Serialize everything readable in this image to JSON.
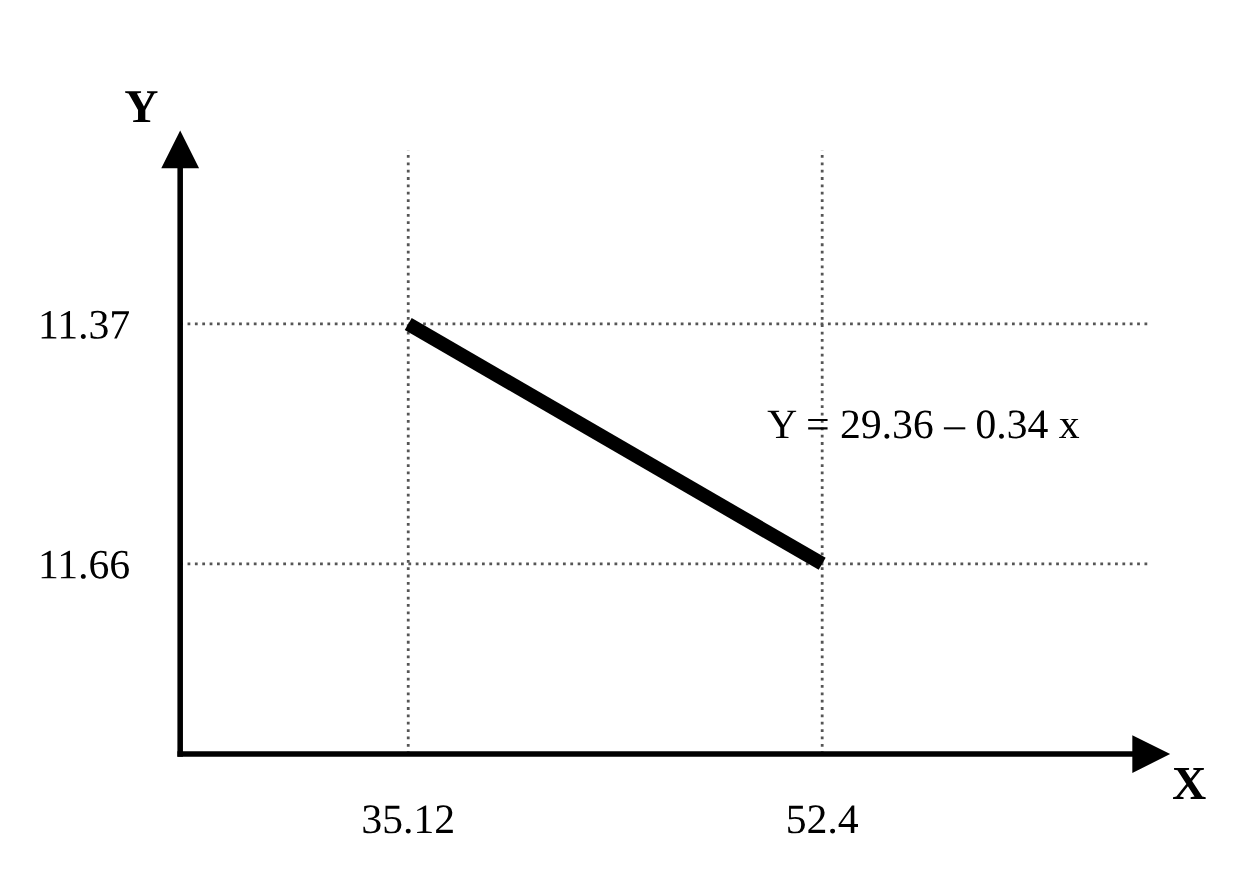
{
  "chart_data": {
    "type": "line",
    "xlabel": "X",
    "ylabel": "Y",
    "x": [
      35.12,
      52.4
    ],
    "series": [
      {
        "color": "#000000",
        "values": [
          11.37,
          11.66
        ]
      }
    ],
    "xlim": [
      25.6,
      66.1
    ],
    "ylim": [
      11.89,
      11.16
    ],
    "xticks": [
      35.12,
      52.4
    ],
    "yticks": [
      11.37,
      11.66
    ],
    "ref_lines": [
      {
        "axis": "x",
        "value": 35.12,
        "line_style": "dotted",
        "color": "#555555"
      },
      {
        "axis": "x",
        "value": 52.4,
        "line_style": "dotted",
        "color": "#555555"
      },
      {
        "axis": "y",
        "value": 11.37,
        "line_style": "dotted",
        "color": "#555555"
      },
      {
        "axis": "y",
        "value": 11.66,
        "line_style": "dotted",
        "color": "#555555"
      }
    ],
    "annotations": [
      "Y = 29.36 – 0.34 x"
    ],
    "marker": "none",
    "line_style": "solid",
    "grid": false,
    "legend": false
  }
}
